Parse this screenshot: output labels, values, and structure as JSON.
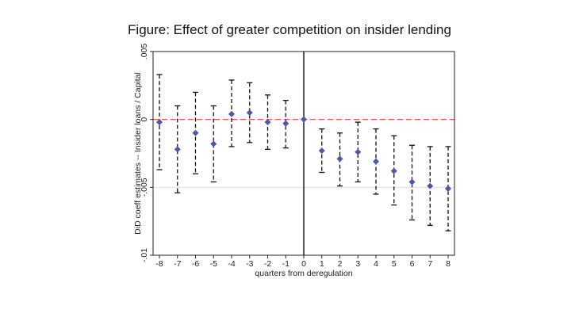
{
  "chart_data": {
    "type": "scatter",
    "title": "Figure: Effect of greater competition on insider lending",
    "xlabel": "quarters from deregulation",
    "ylabel": "DiD coeff estimates -- Insider loans / Capital",
    "xlim": [
      -8,
      8
    ],
    "ylim": [
      -0.01,
      0.005
    ],
    "x_ticks": [
      "-8",
      "-7",
      "-6",
      "-5",
      "-4",
      "-3",
      "-2",
      "-1",
      "0",
      "1",
      "2",
      "3",
      "4",
      "5",
      "6",
      "7",
      "8"
    ],
    "y_ticks": [
      {
        "value": 0.005,
        "label": ".005"
      },
      {
        "value": 0,
        "label": "0"
      },
      {
        "value": -0.005,
        "label": "-.005"
      },
      {
        "value": -0.01,
        "label": "-.01"
      }
    ],
    "grid": "horizontal",
    "reference_lines": {
      "vertical_x": 0,
      "horizontal_y": 0
    },
    "colors": {
      "point": "#4a5aa8",
      "zero_line": "#e0443a",
      "ci": "#111111",
      "grid": "#dddddd"
    },
    "points": [
      {
        "x": -8,
        "y": -0.0002,
        "lo": -0.0037,
        "hi": 0.0033
      },
      {
        "x": -7,
        "y": -0.0022,
        "lo": -0.0054,
        "hi": 0.001
      },
      {
        "x": -6,
        "y": -0.001,
        "lo": -0.004,
        "hi": 0.002
      },
      {
        "x": -5,
        "y": -0.0018,
        "lo": -0.0046,
        "hi": 0.001
      },
      {
        "x": -4,
        "y": 0.0004,
        "lo": -0.002,
        "hi": 0.0029
      },
      {
        "x": -3,
        "y": 0.0005,
        "lo": -0.0017,
        "hi": 0.0027
      },
      {
        "x": -2,
        "y": -0.0002,
        "lo": -0.0022,
        "hi": 0.0018
      },
      {
        "x": -1,
        "y": -0.0003,
        "lo": -0.0021,
        "hi": 0.0014
      },
      {
        "x": 0,
        "y": 0.0,
        "lo": 0.0,
        "hi": 0.0
      },
      {
        "x": 1,
        "y": -0.0023,
        "lo": -0.0039,
        "hi": -0.0007
      },
      {
        "x": 2,
        "y": -0.0029,
        "lo": -0.0049,
        "hi": -0.001
      },
      {
        "x": 3,
        "y": -0.0024,
        "lo": -0.0046,
        "hi": -0.0002
      },
      {
        "x": 4,
        "y": -0.0031,
        "lo": -0.0055,
        "hi": -0.0007
      },
      {
        "x": 5,
        "y": -0.0038,
        "lo": -0.0063,
        "hi": -0.0012
      },
      {
        "x": 6,
        "y": -0.0046,
        "lo": -0.0074,
        "hi": -0.0019
      },
      {
        "x": 7,
        "y": -0.0049,
        "lo": -0.0078,
        "hi": -0.002
      },
      {
        "x": 8,
        "y": -0.0051,
        "lo": -0.0082,
        "hi": -0.002
      }
    ]
  }
}
